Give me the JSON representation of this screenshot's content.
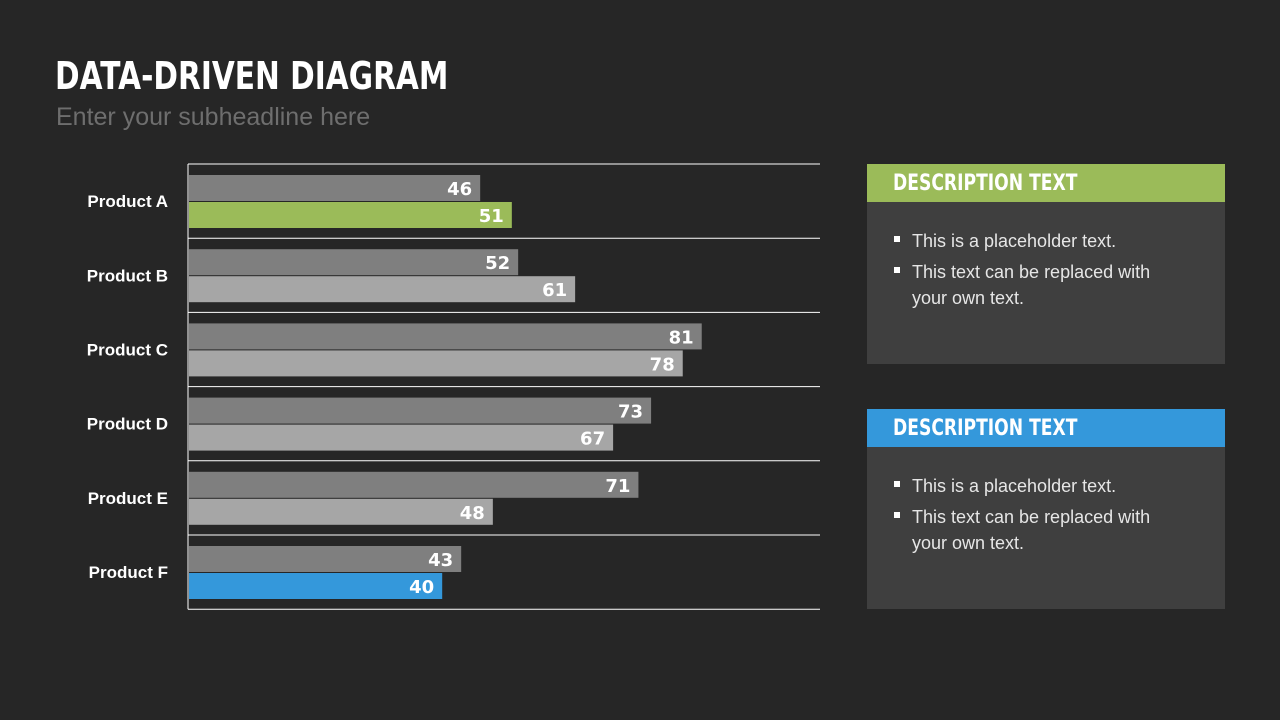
{
  "header": {
    "title": "DATA-DRIVEN DIAGRAM",
    "subtitle": "Enter your subheadline here"
  },
  "colors": {
    "background": "#262626",
    "bar_dark": "#7f7f7f",
    "bar_light": "#a6a6a6",
    "accent_green": "#9bbb59",
    "accent_blue": "#3498db",
    "panel": "#3f3f3f"
  },
  "chart_data": {
    "type": "bar",
    "orientation": "horizontal",
    "categories": [
      "Product A",
      "Product B",
      "Product C",
      "Product D",
      "Product E",
      "Product F"
    ],
    "series": [
      {
        "values": [
          46,
          52,
          81,
          73,
          71,
          43
        ]
      },
      {
        "values": [
          51,
          61,
          78,
          67,
          48,
          40
        ]
      }
    ],
    "highlight": [
      {
        "category": "Product A",
        "series": 1,
        "color": "#9bbb59"
      },
      {
        "category": "Product F",
        "series": 1,
        "color": "#3498db"
      }
    ],
    "xlim": [
      0,
      100
    ],
    "data_labels": true,
    "grid": "horizontal separators",
    "legend": "none"
  },
  "panels": [
    {
      "title": "DESCRIPTION TEXT",
      "accent": "#9bbb59",
      "bullets": [
        "This is a placeholder text.",
        "This text can be replaced with your own text."
      ]
    },
    {
      "title": "DESCRIPTION TEXT",
      "accent": "#3498db",
      "bullets": [
        "This is a placeholder text.",
        "This text can be replaced with your own text."
      ]
    }
  ]
}
